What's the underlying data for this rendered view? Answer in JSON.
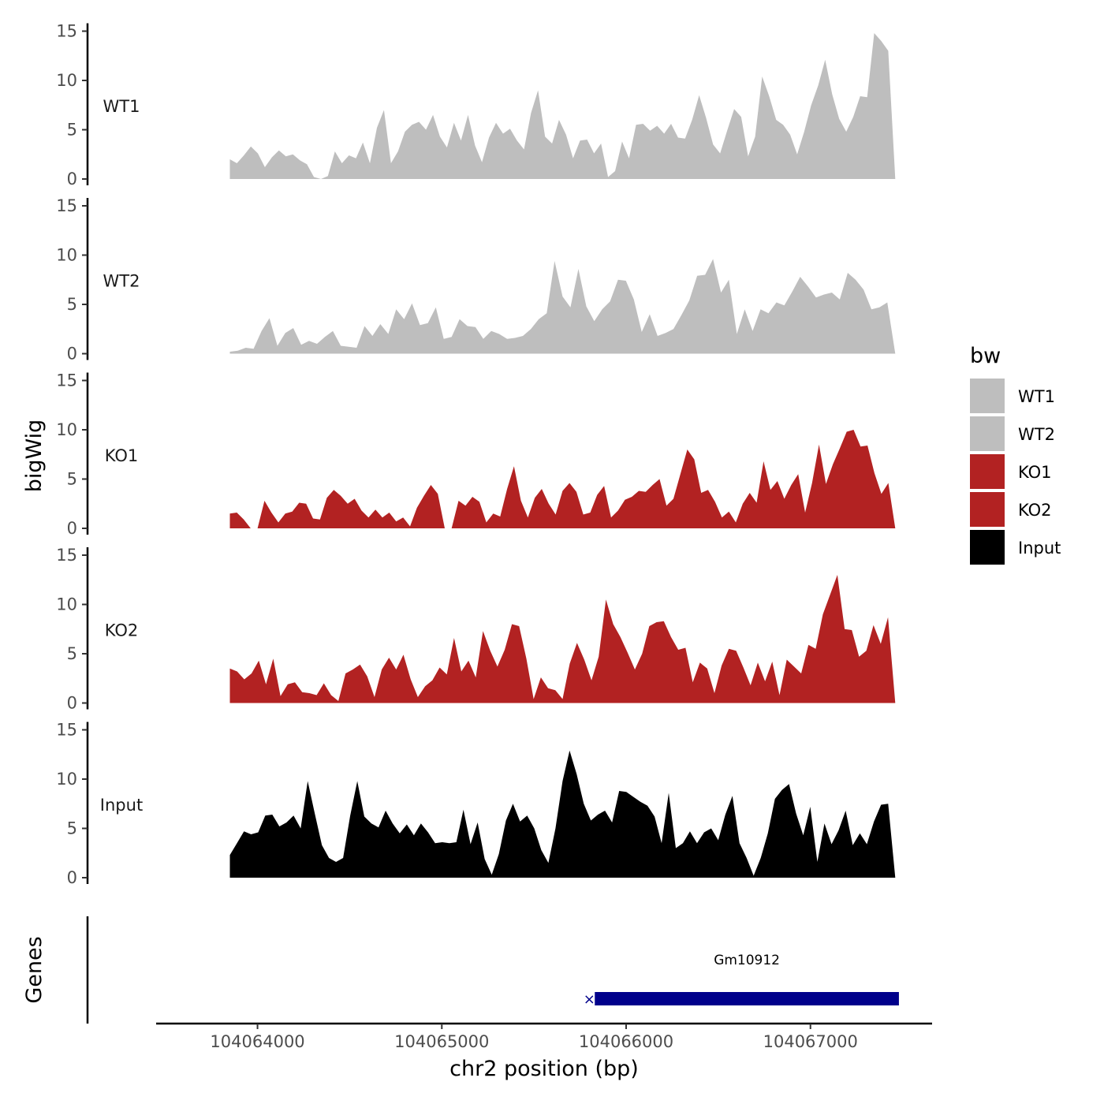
{
  "chart_data": {
    "type": "area",
    "title": "",
    "xlabel": "chr2 position (bp)",
    "ylabel": "bigWig",
    "genes_label": "Genes",
    "xlim": [
      104063450,
      104067660
    ],
    "x_range": [
      104063850,
      104067460
    ],
    "ylim": [
      0,
      15
    ],
    "yticks": [
      0,
      5,
      10,
      15
    ],
    "xticks": [
      104064000,
      104065000,
      104066000,
      104067000
    ],
    "xtick_labels": [
      "104064000",
      "104065000",
      "104066000",
      "104067000"
    ],
    "legend": {
      "title": "bw",
      "position": "right",
      "entries": [
        {
          "label": "WT1",
          "color": "#BEBEBE"
        },
        {
          "label": "WT2",
          "color": "#BEBEBE"
        },
        {
          "label": "KO1",
          "color": "#B22222"
        },
        {
          "label": "KO2",
          "color": "#B22222"
        },
        {
          "label": "Input",
          "color": "#000000"
        }
      ]
    },
    "series": [
      {
        "name": "WT1",
        "color": "#BEBEBE",
        "values": [
          2.0,
          1.6,
          2.4,
          3.3,
          2.6,
          1.2,
          2.2,
          2.9,
          2.3,
          2.5,
          1.9,
          1.5,
          0.2,
          0,
          0.3,
          2.8,
          1.6,
          2.4,
          2.1,
          3.7,
          1.6,
          5.2,
          7.0,
          1.6,
          2.8,
          4.8,
          5.5,
          5.8,
          5.0,
          6.5,
          4.3,
          3.2,
          5.7,
          3.9,
          6.5,
          3.4,
          1.7,
          4.2,
          5.7,
          4.6,
          5.1,
          3.9,
          3.0,
          6.7,
          9.0,
          4.3,
          3.6,
          6.0,
          4.5,
          2.1,
          3.9,
          4.0,
          2.6,
          3.6,
          0.2,
          0.8,
          3.8,
          2.1,
          5.5,
          5.6,
          4.9,
          5.4,
          4.6,
          5.6,
          4.2,
          4.1,
          6.0,
          8.5,
          6.2,
          3.5,
          2.6,
          4.9,
          7.1,
          6.3,
          2.3,
          4.3,
          10.4,
          8.4,
          6.0,
          5.5,
          4.5,
          2.5,
          4.8,
          7.5,
          9.5,
          12.1,
          8.6,
          6.1,
          4.8,
          6.3,
          8.4,
          8.3,
          14.8,
          14.0,
          13.0,
          0
        ]
      },
      {
        "name": "WT2",
        "color": "#BEBEBE",
        "values": [
          0.2,
          0.3,
          0.6,
          0.5,
          2.3,
          3.6,
          0.8,
          2.1,
          2.6,
          0.9,
          1.3,
          1.0,
          1.7,
          2.3,
          0.8,
          0.7,
          0.6,
          2.8,
          1.8,
          3.0,
          2.0,
          4.5,
          3.5,
          5.1,
          2.9,
          3.1,
          4.7,
          1.5,
          1.7,
          3.5,
          2.8,
          2.7,
          1.5,
          2.3,
          2.0,
          1.5,
          1.6,
          1.8,
          2.5,
          3.5,
          4.1,
          9.4,
          5.8,
          4.7,
          8.6,
          4.8,
          3.3,
          4.5,
          5.3,
          7.5,
          7.4,
          5.5,
          2.2,
          4.0,
          1.8,
          2.1,
          2.5,
          3.9,
          5.4,
          7.9,
          8.0,
          9.6,
          6.2,
          7.5,
          2.0,
          4.5,
          2.3,
          4.5,
          4.1,
          5.2,
          4.9,
          6.3,
          7.8,
          6.8,
          5.7,
          6.0,
          6.2,
          5.5,
          8.2,
          7.5,
          6.5,
          4.5,
          4.7,
          5.2,
          0
        ]
      },
      {
        "name": "KO1",
        "color": "#B22222",
        "values": [
          1.5,
          1.6,
          0.9,
          0,
          0,
          2.8,
          1.6,
          0.6,
          1.5,
          1.7,
          2.6,
          2.5,
          1.0,
          0.9,
          3.1,
          3.9,
          3.3,
          2.5,
          3.0,
          1.8,
          1.1,
          1.9,
          1.1,
          1.6,
          0.7,
          1.1,
          0.2,
          2.1,
          3.3,
          4.4,
          3.5,
          0,
          0,
          2.8,
          2.3,
          3.2,
          2.7,
          0.6,
          1.5,
          1.2,
          4.0,
          6.3,
          2.8,
          1.1,
          3.1,
          4.0,
          2.5,
          1.4,
          3.8,
          4.6,
          3.7,
          1.4,
          1.6,
          3.4,
          4.3,
          1.1,
          1.8,
          2.9,
          3.2,
          3.8,
          3.7,
          4.4,
          5.0,
          2.3,
          3.0,
          5.5,
          8.0,
          7.0,
          3.6,
          3.9,
          2.7,
          1.1,
          1.7,
          0.6,
          2.5,
          3.6,
          2.6,
          6.8,
          3.9,
          4.8,
          3.0,
          4.4,
          5.5,
          1.6,
          4.6,
          8.5,
          4.5,
          6.5,
          8.1,
          9.8,
          10.0,
          8.3,
          8.4,
          5.6,
          3.5,
          4.6,
          0
        ]
      },
      {
        "name": "KO2",
        "color": "#B22222",
        "values": [
          3.5,
          3.2,
          2.4,
          3.0,
          4.3,
          1.9,
          4.5,
          0.7,
          1.9,
          2.1,
          1.1,
          1.0,
          0.8,
          2.0,
          0.8,
          0.2,
          3.0,
          3.4,
          3.9,
          2.7,
          0.6,
          3.4,
          4.6,
          3.4,
          4.9,
          2.4,
          0.6,
          1.7,
          2.3,
          3.6,
          2.9,
          6.6,
          3.2,
          4.3,
          2.6,
          7.3,
          5.3,
          3.7,
          5.4,
          8.0,
          7.8,
          4.5,
          0.4,
          2.6,
          1.5,
          1.3,
          0.4,
          4.0,
          6.1,
          4.4,
          2.3,
          4.7,
          10.5,
          8.0,
          6.7,
          5.1,
          3.4,
          5.0,
          7.8,
          8.2,
          8.3,
          6.7,
          5.4,
          5.6,
          2.1,
          4.1,
          3.5,
          1.0,
          3.8,
          5.5,
          5.3,
          3.6,
          1.8,
          4.1,
          2.2,
          4.2,
          0.8,
          4.4,
          3.7,
          3.0,
          5.9,
          5.5,
          9.0,
          11.0,
          13.0,
          7.5,
          7.4,
          4.7,
          5.3,
          7.9,
          6.0,
          8.7,
          0
        ]
      },
      {
        "name": "Input",
        "color": "#000000",
        "values": [
          2.3,
          3.5,
          4.7,
          4.4,
          4.6,
          6.3,
          6.4,
          5.2,
          5.6,
          6.3,
          5.0,
          9.8,
          6.5,
          3.3,
          2.0,
          1.6,
          2.0,
          6.3,
          9.8,
          6.2,
          5.5,
          5.1,
          6.8,
          5.5,
          4.5,
          5.4,
          4.3,
          5.5,
          4.6,
          3.5,
          3.6,
          3.5,
          3.6,
          6.9,
          3.4,
          5.6,
          1.9,
          0.3,
          2.4,
          5.8,
          7.5,
          5.7,
          6.3,
          5.0,
          2.8,
          1.5,
          5.0,
          9.8,
          12.9,
          10.5,
          7.5,
          5.8,
          6.4,
          6.8,
          5.6,
          8.8,
          8.7,
          8.2,
          7.7,
          7.3,
          6.2,
          3.5,
          8.6,
          3.0,
          3.5,
          4.7,
          3.5,
          4.6,
          5.0,
          3.8,
          6.4,
          8.3,
          3.5,
          2.0,
          0.2,
          2.0,
          4.5,
          8.0,
          8.9,
          9.5,
          6.5,
          4.3,
          7.2,
          1.6,
          5.5,
          3.4,
          4.8,
          6.8,
          3.3,
          4.5,
          3.4,
          5.7,
          7.4,
          7.5,
          0
        ]
      }
    ],
    "genes": [
      {
        "name": "Gm10912",
        "start": 104065830,
        "end": 104067480,
        "color": "#00008B"
      }
    ]
  }
}
